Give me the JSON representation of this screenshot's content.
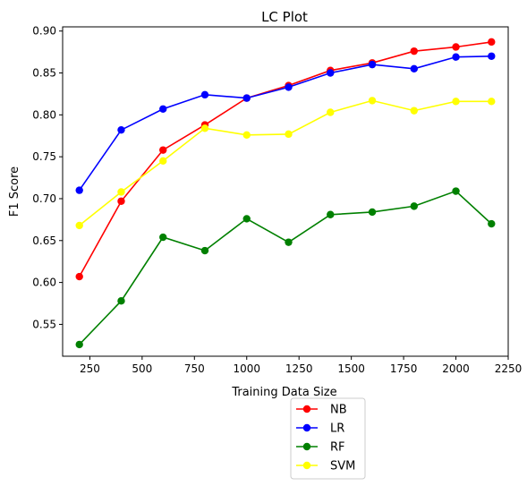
{
  "chart_data": {
    "type": "line",
    "title": "LC Plot",
    "xlabel": "Training Data Size",
    "ylabel": "F1 Score",
    "xlim": [
      120,
      2250
    ],
    "ylim": [
      0.512,
      0.905
    ],
    "x_ticks": [
      250,
      500,
      750,
      1000,
      1250,
      1500,
      1750,
      2000,
      2250
    ],
    "y_ticks": [
      0.55,
      0.6,
      0.65,
      0.7,
      0.75,
      0.8,
      0.85,
      0.9
    ],
    "x": [
      200,
      400,
      600,
      800,
      1000,
      1200,
      1400,
      1600,
      1800,
      2000,
      2170
    ],
    "grid": false,
    "legend_position": "below plot",
    "series": [
      {
        "name": "NB",
        "color": "#ff0000",
        "values": [
          0.607,
          0.697,
          0.758,
          0.788,
          0.82,
          0.835,
          0.853,
          0.862,
          0.876,
          0.881,
          0.887
        ]
      },
      {
        "name": "LR",
        "color": "#0000ff",
        "values": [
          0.71,
          0.782,
          0.807,
          0.824,
          0.82,
          0.833,
          0.85,
          0.86,
          0.855,
          0.869,
          0.87
        ]
      },
      {
        "name": "RF",
        "color": "#008000",
        "values": [
          0.526,
          0.578,
          0.654,
          0.638,
          0.676,
          0.648,
          0.681,
          0.684,
          0.691,
          0.709,
          0.67
        ]
      },
      {
        "name": "SVM",
        "color": "#ffff00",
        "values": [
          0.668,
          0.708,
          0.745,
          0.784,
          0.776,
          0.777,
          0.803,
          0.817,
          0.805,
          0.816,
          0.816
        ]
      }
    ]
  }
}
